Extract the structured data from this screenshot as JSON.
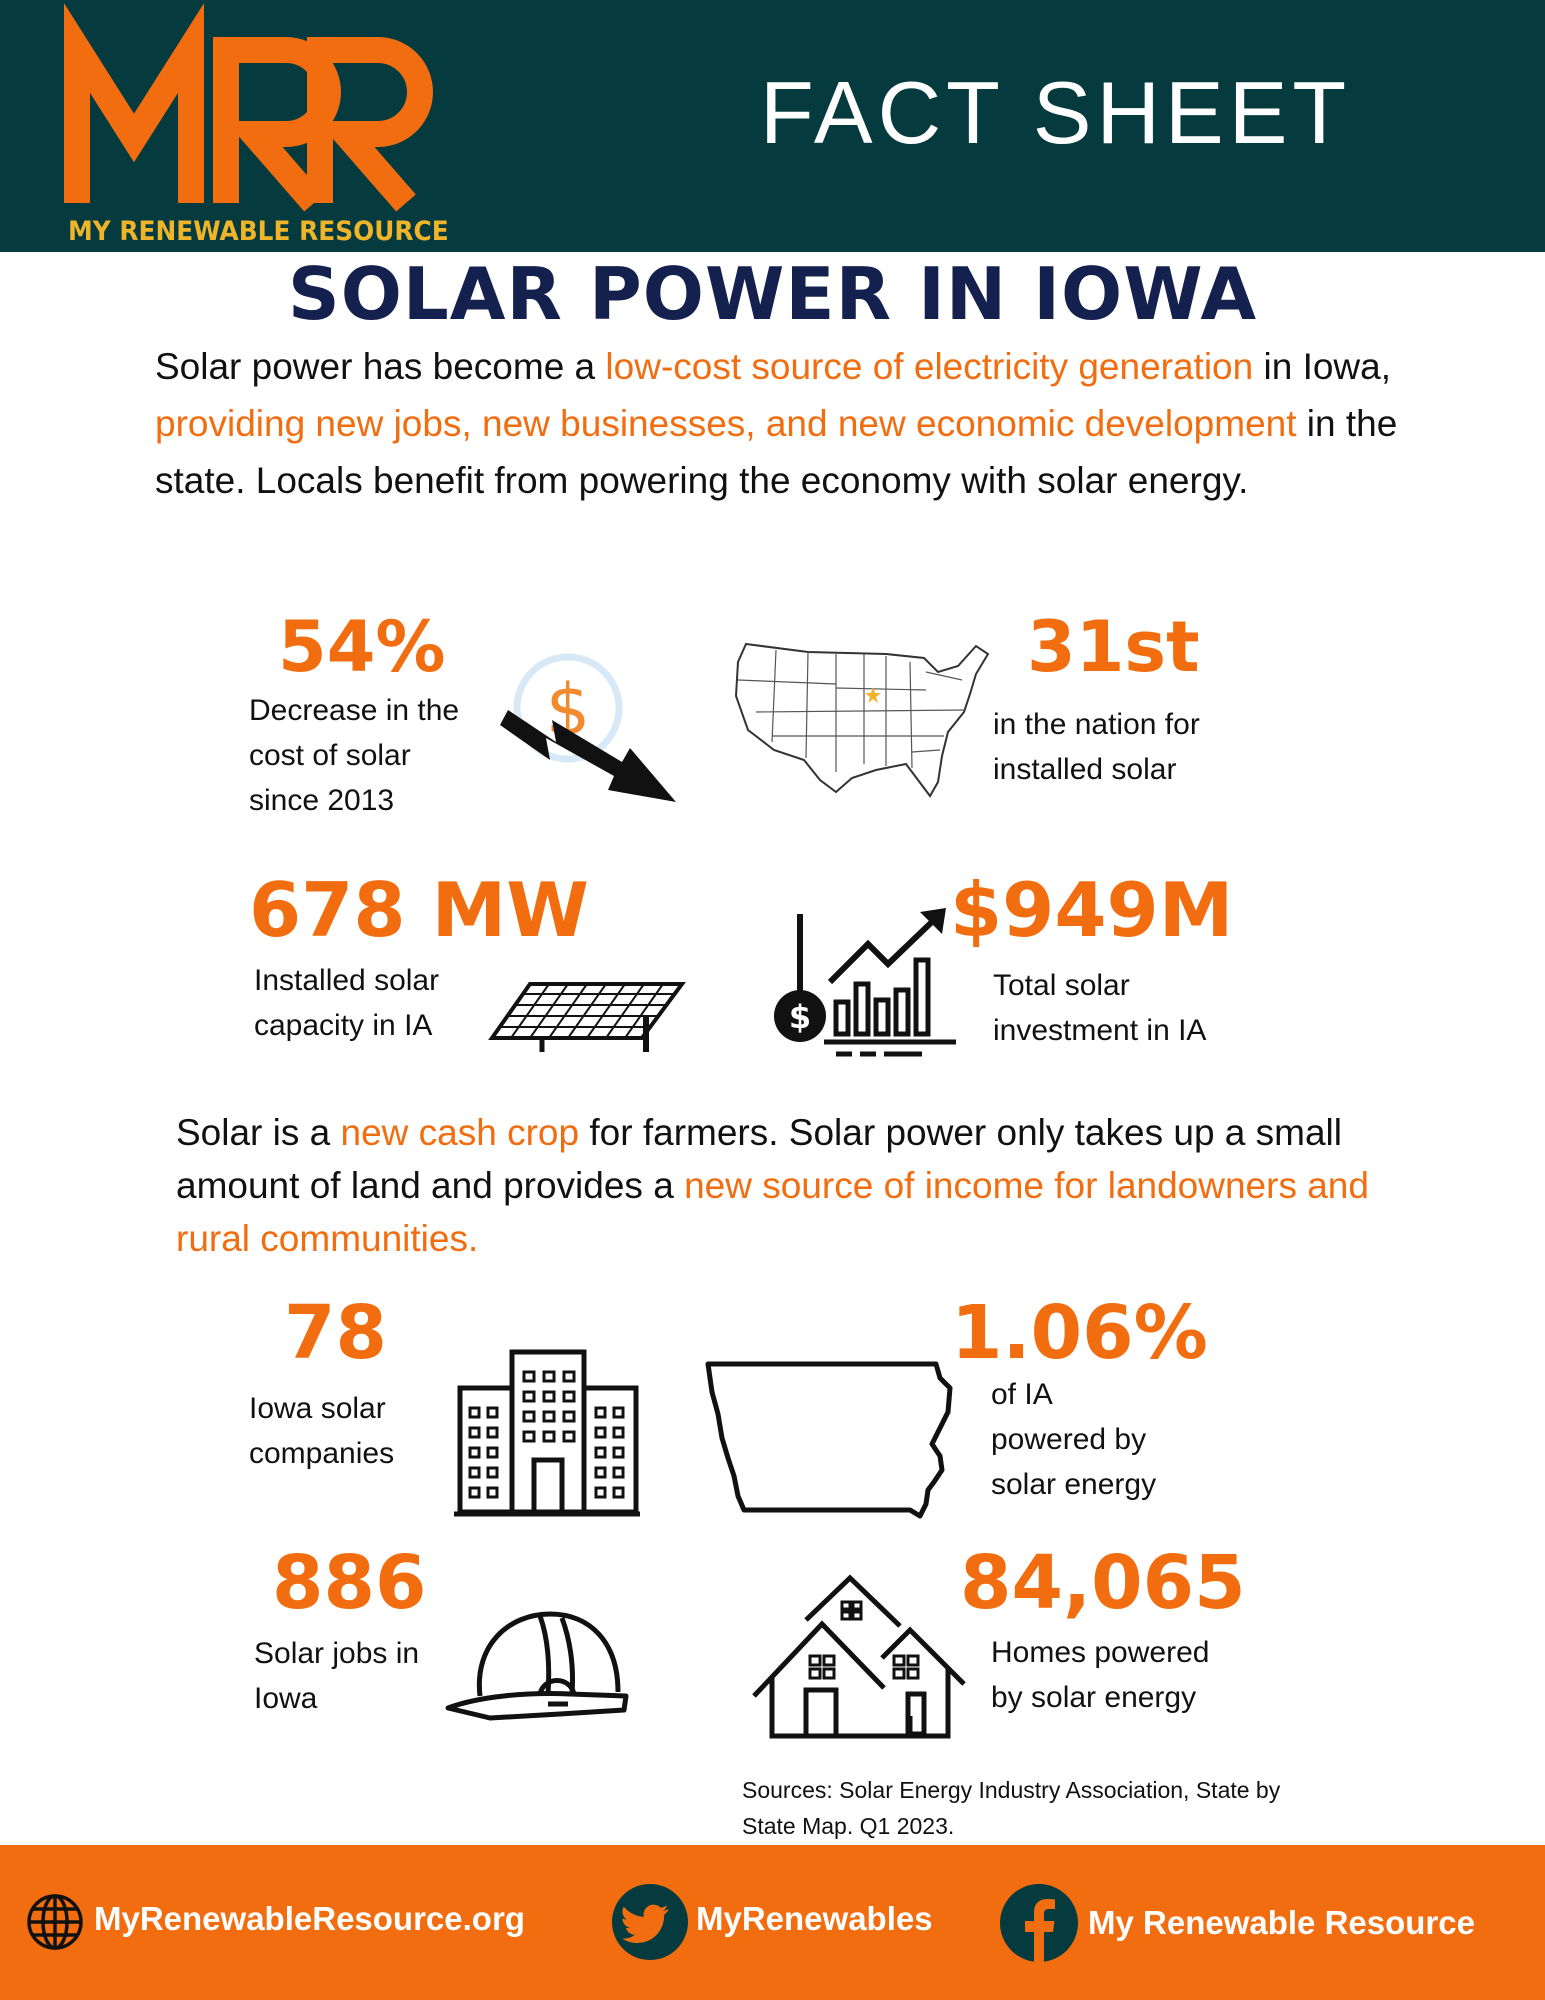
{
  "header": {
    "logo_letters": "MRR",
    "logo_text": "MY RENEWABLE RESOURCE",
    "fact_sheet": "FACT SHEET",
    "colors": {
      "background": "#053B3F",
      "logo": "#F26D0F",
      "logo_text": "#F0B429"
    }
  },
  "title": "SOLAR POWER IN IOWA",
  "intro": {
    "parts": [
      "Solar power has become a ",
      "low-cost source of electricity generation",
      " in Iowa, ",
      "providing new jobs, new businesses, and new economic development",
      " in the state. Locals benefit from powering the economy with solar energy."
    ]
  },
  "stats_top": [
    {
      "value": "54%",
      "label_lines": [
        "Decrease in the",
        "cost of solar",
        "since 2013"
      ],
      "icon": "dollar-down-arrow-icon"
    },
    {
      "value": "31st",
      "label_lines": [
        "in the nation for",
        "installed solar"
      ],
      "icon": "us-map-icon"
    },
    {
      "value": "678 MW",
      "label_lines": [
        "Installed solar",
        "capacity in IA"
      ],
      "icon": "solar-panel-icon"
    },
    {
      "value": "$949M",
      "label_lines": [
        "Total solar",
        "investment in IA"
      ],
      "icon": "investment-chart-icon"
    }
  ],
  "farm": {
    "parts": [
      "Solar is a ",
      "new cash crop",
      " for farmers. Solar power only takes up a small amount of land and provides a ",
      "new source of income for landowners and rural communities."
    ]
  },
  "stats_bottom": [
    {
      "value": "78",
      "label_lines": [
        "Iowa solar",
        "companies"
      ],
      "icon": "office-buildings-icon"
    },
    {
      "value": "1.06%",
      "label_lines": [
        "of IA",
        "powered by",
        "solar energy"
      ],
      "icon": "iowa-map-icon"
    },
    {
      "value": "886",
      "label_lines": [
        "Solar jobs in",
        "Iowa"
      ],
      "icon": "hard-hat-icon"
    },
    {
      "value": "84,065",
      "label_lines": [
        "Homes powered",
        "by solar energy"
      ],
      "icon": "houses-icon"
    }
  ],
  "sources": [
    "Sources: Solar Energy Industry Association, State by",
    "State Map. Q1 2023."
  ],
  "footer": {
    "website": "MyRenewableResource.org",
    "twitter": "MyRenewables",
    "facebook": "My Renewable Resource",
    "colors": {
      "background": "#F26D0F",
      "icon_circle": "#053B3F"
    }
  },
  "accent": "#F26D0F",
  "title_color": "#14204E"
}
